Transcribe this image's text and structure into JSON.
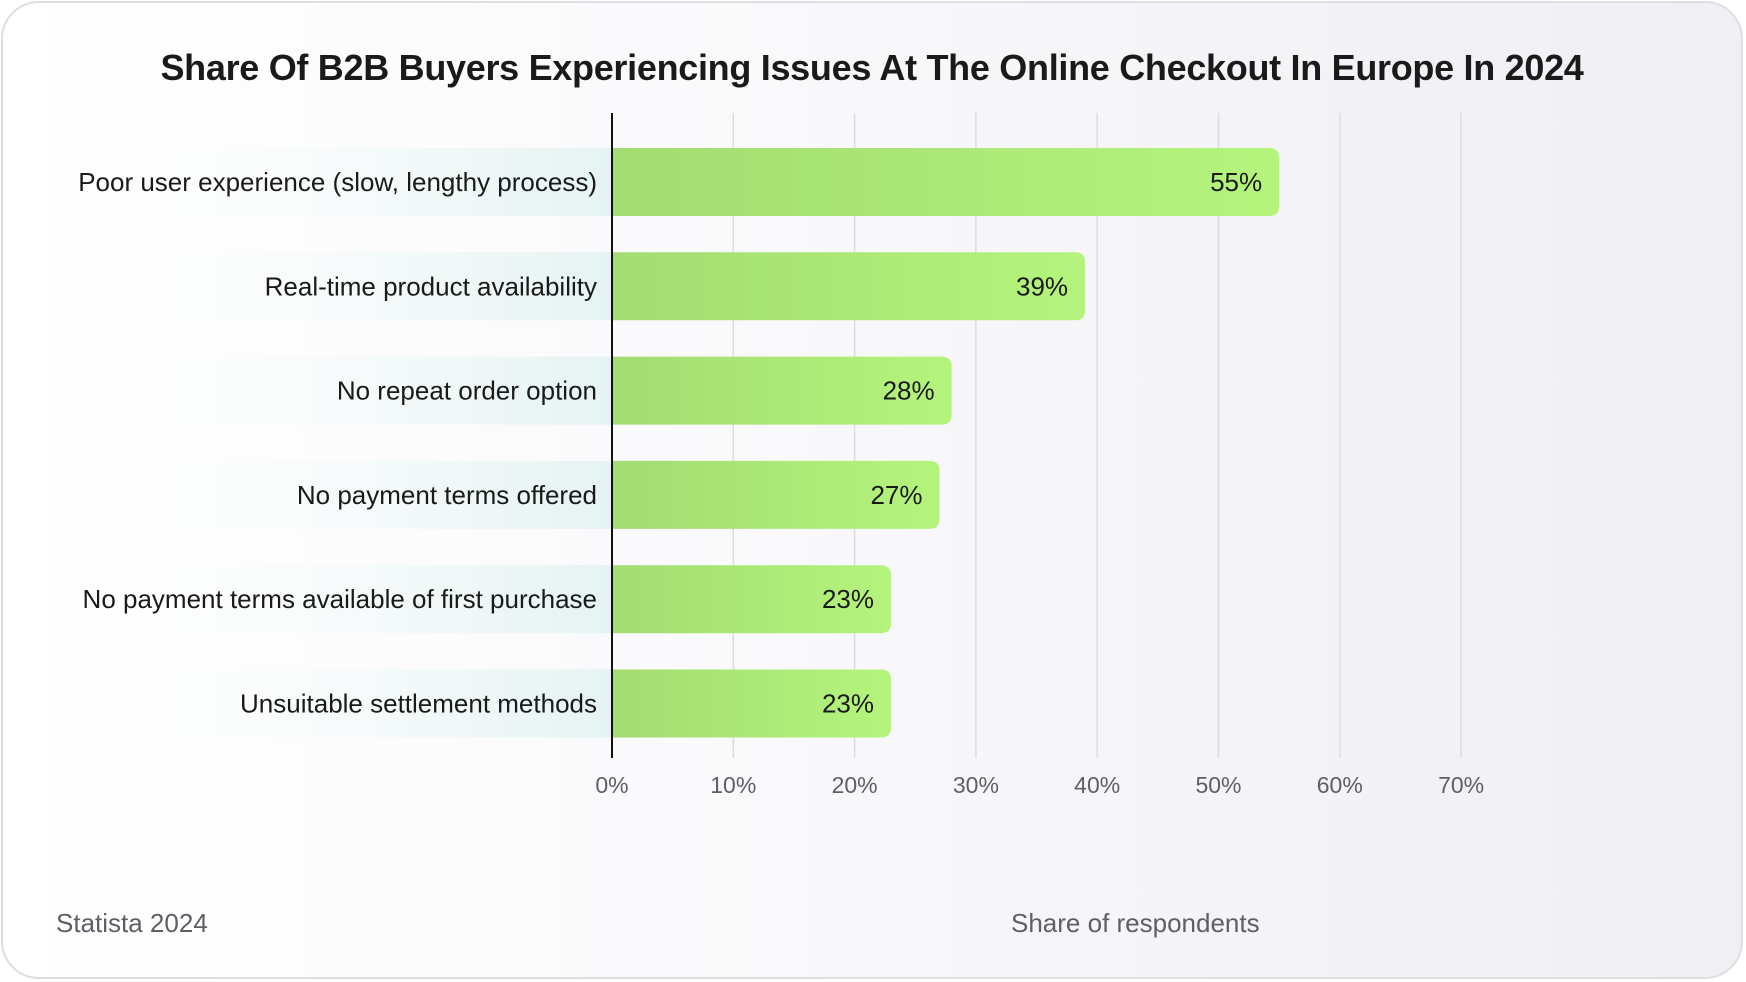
{
  "source": "Statista 2024",
  "chart_data": {
    "type": "bar",
    "orientation": "horizontal",
    "title": "Share Of B2B Buyers Experiencing Issues At The Online Checkout In Europe In 2024",
    "xlabel": "Share of respondents",
    "ylabel": "",
    "categories": [
      "Poor user experience (slow, lengthy process)",
      "Real-time product availability",
      "No repeat order option",
      "No payment terms offered",
      "No payment terms available of first purchase",
      "Unsuitable settlement methods"
    ],
    "values": [
      55,
      39,
      28,
      27,
      23,
      23
    ],
    "value_labels": [
      "55%",
      "39%",
      "28%",
      "27%",
      "23%",
      "23%"
    ],
    "xlim": [
      0,
      70
    ],
    "xticks": [
      0,
      10,
      20,
      30,
      40,
      50,
      60,
      70
    ],
    "xtick_labels": [
      "0%",
      "10%",
      "20%",
      "30%",
      "40%",
      "50%",
      "60%",
      "70%"
    ],
    "grid": true,
    "colors": {
      "bar_start": "#a3dc72",
      "bar_end": "#b4f47c",
      "label_band": "#e4f3f2",
      "grid": "#dcdce0",
      "axis": "#111111"
    }
  }
}
